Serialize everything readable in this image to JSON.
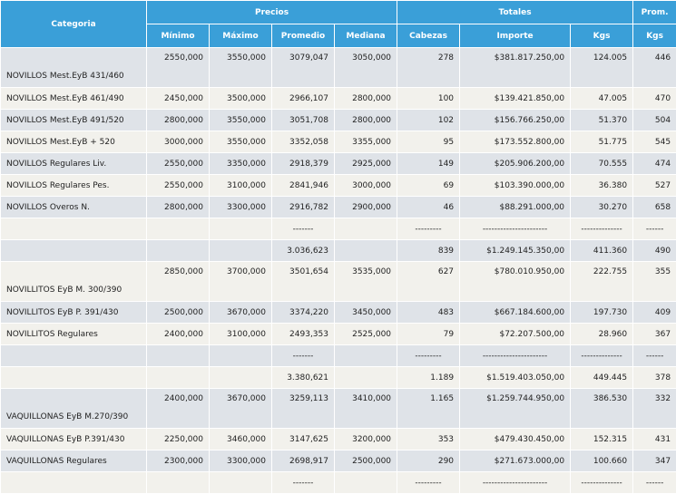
{
  "headers": {
    "group": [
      "Categoria",
      "Precios",
      "Totales",
      "Prom."
    ],
    "sub": [
      "Mínimo",
      "Máximo",
      "Promedio",
      "Mediana",
      "Cabezas",
      "Importe",
      "Kgs",
      "Kgs"
    ]
  },
  "rows": [
    {
      "cat": "NOVILLOS Mest.EyB 431/460",
      "min": "2550,000",
      "max": "3550,000",
      "prom": "3079,047",
      "med": "3050,000",
      "cab": "278",
      "imp": "$381.817.250,00",
      "kgs": "124.005",
      "pk": "446"
    },
    {
      "cat": "NOVILLOS Mest.EyB 461/490",
      "min": "2450,000",
      "max": "3500,000",
      "prom": "2966,107",
      "med": "2800,000",
      "cab": "100",
      "imp": "$139.421.850,00",
      "kgs": "47.005",
      "pk": "470"
    },
    {
      "cat": "NOVILLOS Mest.EyB 491/520",
      "min": "2800,000",
      "max": "3550,000",
      "prom": "3051,708",
      "med": "2800,000",
      "cab": "102",
      "imp": "$156.766.250,00",
      "kgs": "51.370",
      "pk": "504"
    },
    {
      "cat": "NOVILLOS Mest.EyB + 520",
      "min": "3000,000",
      "max": "3550,000",
      "prom": "3352,058",
      "med": "3355,000",
      "cab": "95",
      "imp": "$173.552.800,00",
      "kgs": "51.775",
      "pk": "545"
    },
    {
      "cat": "NOVILLOS Regulares Liv.",
      "min": "2550,000",
      "max": "3350,000",
      "prom": "2918,379",
      "med": "2925,000",
      "cab": "149",
      "imp": "$205.906.200,00",
      "kgs": "70.555",
      "pk": "474"
    },
    {
      "cat": "NOVILLOS Regulares Pes.",
      "min": "2550,000",
      "max": "3100,000",
      "prom": "2841,946",
      "med": "3000,000",
      "cab": "69",
      "imp": "$103.390.000,00",
      "kgs": "36.380",
      "pk": "527"
    },
    {
      "cat": "NOVILLOS Overos N.",
      "min": "2800,000",
      "max": "3300,000",
      "prom": "2916,782",
      "med": "2900,000",
      "cab": "46",
      "imp": "$88.291.000,00",
      "kgs": "30.270",
      "pk": "658"
    },
    {
      "cat": "",
      "min": "",
      "max": "",
      "prom": "-------",
      "med": "",
      "cab": "---------",
      "imp": "----------------------",
      "kgs": "--------------",
      "pk": "------"
    },
    {
      "cat": "",
      "min": "",
      "max": "",
      "prom": "3.036,623",
      "med": "",
      "cab": "839",
      "imp": "$1.249.145.350,00",
      "kgs": "411.360",
      "pk": "490"
    },
    {
      "cat": "NOVILLITOS EyB M. 300/390",
      "min": "2850,000",
      "max": "3700,000",
      "prom": "3501,654",
      "med": "3535,000",
      "cab": "627",
      "imp": "$780.010.950,00",
      "kgs": "222.755",
      "pk": "355"
    },
    {
      "cat": "NOVILLITOS EyB P. 391/430",
      "min": "2500,000",
      "max": "3670,000",
      "prom": "3374,220",
      "med": "3450,000",
      "cab": "483",
      "imp": "$667.184.600,00",
      "kgs": "197.730",
      "pk": "409"
    },
    {
      "cat": "NOVILLITOS Regulares",
      "min": "2400,000",
      "max": "3100,000",
      "prom": "2493,353",
      "med": "2525,000",
      "cab": "79",
      "imp": "$72.207.500,00",
      "kgs": "28.960",
      "pk": "367"
    },
    {
      "cat": "",
      "min": "",
      "max": "",
      "prom": "-------",
      "med": "",
      "cab": "---------",
      "imp": "----------------------",
      "kgs": "--------------",
      "pk": "------"
    },
    {
      "cat": "",
      "min": "",
      "max": "",
      "prom": "3.380,621",
      "med": "",
      "cab": "1.189",
      "imp": "$1.519.403.050,00",
      "kgs": "449.445",
      "pk": "378"
    },
    {
      "cat": "VAQUILLONAS EyB M.270/390",
      "min": "2400,000",
      "max": "3670,000",
      "prom": "3259,113",
      "med": "3410,000",
      "cab": "1.165",
      "imp": "$1.259.744.950,00",
      "kgs": "386.530",
      "pk": "332"
    },
    {
      "cat": "VAQUILLONAS EyB P.391/430",
      "min": "2250,000",
      "max": "3460,000",
      "prom": "3147,625",
      "med": "3200,000",
      "cab": "353",
      "imp": "$479.430.450,00",
      "kgs": "152.315",
      "pk": "431"
    },
    {
      "cat": "VAQUILLONAS Regulares",
      "min": "2300,000",
      "max": "3300,000",
      "prom": "2698,917",
      "med": "2500,000",
      "cab": "290",
      "imp": "$271.673.000,00",
      "kgs": "100.660",
      "pk": "347"
    },
    {
      "cat": "",
      "min": "",
      "max": "",
      "prom": "-------",
      "med": "",
      "cab": "---------",
      "imp": "----------------------",
      "kgs": "--------------",
      "pk": "------"
    }
  ]
}
